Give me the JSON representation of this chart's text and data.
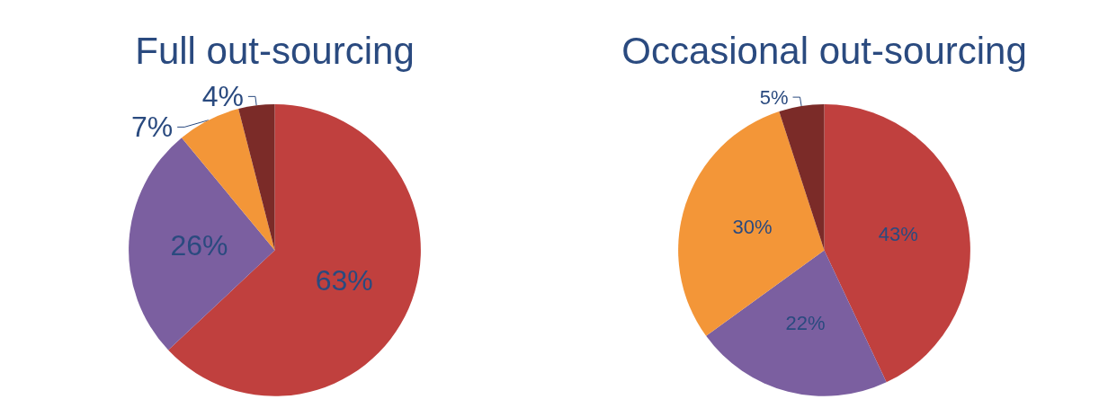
{
  "chart_data": [
    {
      "type": "pie",
      "title": "Full out-sourcing",
      "categories": [
        null,
        null,
        null,
        null
      ],
      "values": [
        63,
        26,
        7,
        4
      ],
      "colors": [
        "#c0403e",
        "#7b5fa0",
        "#f39638",
        "#7b2b28"
      ],
      "value_labels": [
        "63%",
        "26%",
        "7%",
        "4%"
      ]
    },
    {
      "type": "pie",
      "title": "Occasional out-sourcing",
      "categories": [
        null,
        null,
        null,
        null
      ],
      "values": [
        43,
        22,
        30,
        5
      ],
      "colors": [
        "#c0403e",
        "#7b5fa0",
        "#f39638",
        "#7b2b28"
      ],
      "value_labels": [
        "43%",
        "22%",
        "30%",
        "5%"
      ]
    }
  ]
}
